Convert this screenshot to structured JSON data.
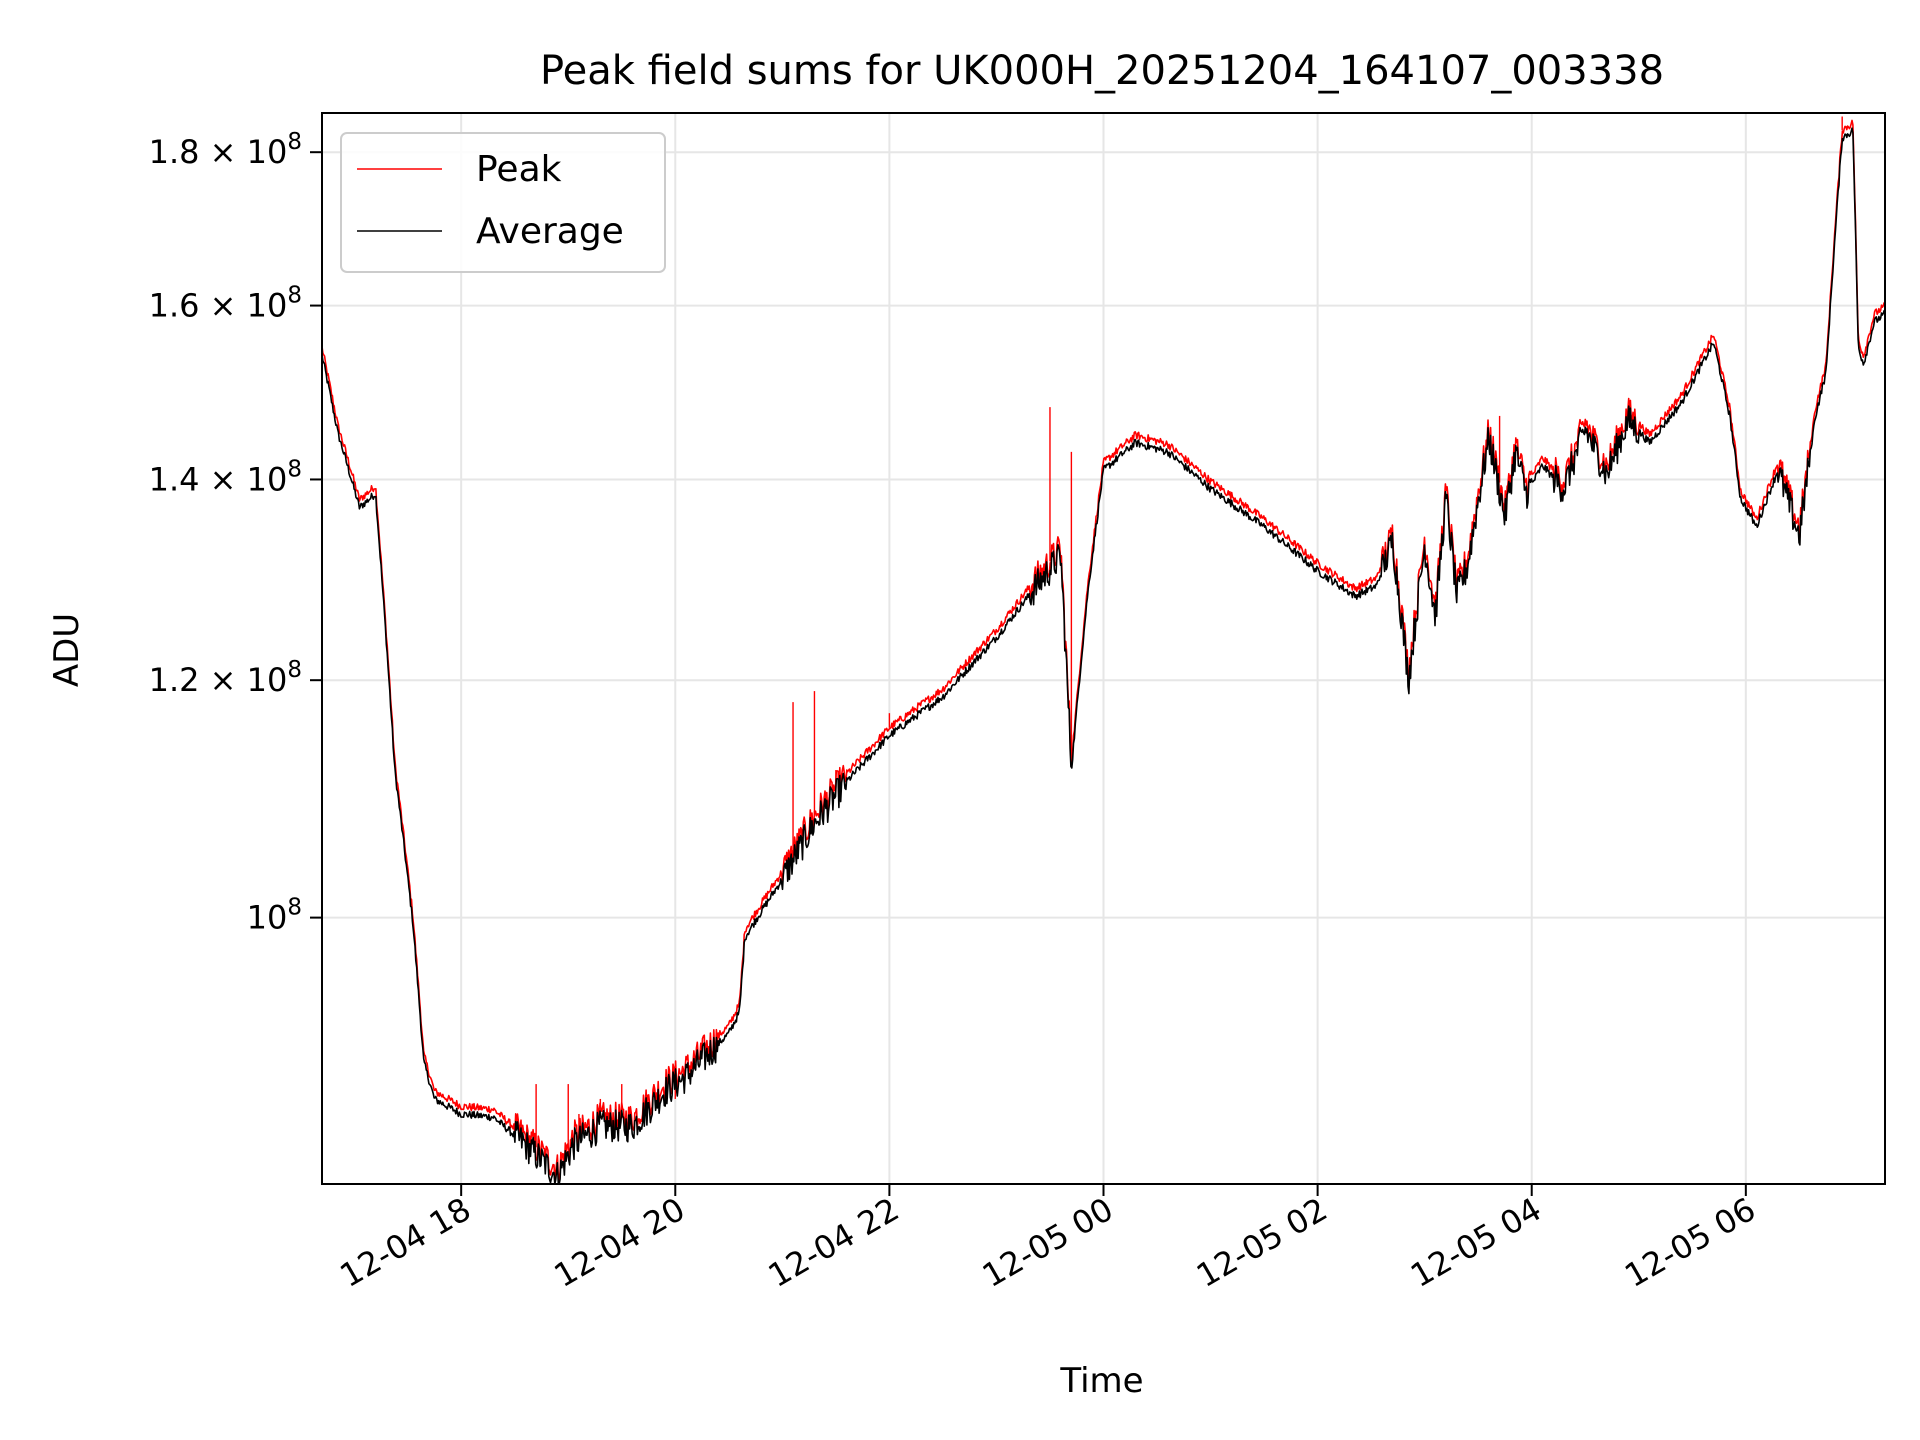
{
  "chart_data": {
    "type": "line",
    "title": "Peak field sums for UK000H_20251204_164107_003338",
    "xlabel": "Time",
    "ylabel": "ADU",
    "yscale": "log",
    "xlim_hours": [
      16.7,
      31.3
    ],
    "ylim": [
      81500000,
      185500000
    ],
    "grid": true,
    "legend_position": "upper-left",
    "x_ticks": [
      {
        "hour": 18,
        "label": "12-04 18"
      },
      {
        "hour": 20,
        "label": "12-04 20"
      },
      {
        "hour": 22,
        "label": "12-04 22"
      },
      {
        "hour": 24,
        "label": "12-05 00"
      },
      {
        "hour": 26,
        "label": "12-05 02"
      },
      {
        "hour": 28,
        "label": "12-05 04"
      },
      {
        "hour": 30,
        "label": "12-05 06"
      }
    ],
    "y_ticks": [
      {
        "value": 100000000,
        "mant": "",
        "times": "",
        "base": "10",
        "exp": "8"
      },
      {
        "value": 120000000,
        "mant": "1.2",
        "times": "×",
        "base": "10",
        "exp": "8"
      },
      {
        "value": 140000000,
        "mant": "1.4",
        "times": "×",
        "base": "10",
        "exp": "8"
      },
      {
        "value": 160000000,
        "mant": "1.6",
        "times": "×",
        "base": "10",
        "exp": "8"
      },
      {
        "value": 180000000,
        "mant": "1.8",
        "times": "×",
        "base": "10",
        "exp": "8"
      }
    ],
    "series": [
      {
        "name": "Peak",
        "color": "#ff0000",
        "offset_factor": 1.006,
        "spikes": [
          [
            18.7,
            88
          ],
          [
            19.0,
            88
          ],
          [
            19.1,
            86
          ],
          [
            19.3,
            87
          ],
          [
            19.5,
            88
          ],
          [
            19.8,
            88
          ],
          [
            20.0,
            87
          ],
          [
            21.1,
            118
          ],
          [
            21.3,
            119
          ],
          [
            21.5,
            112
          ],
          [
            22.0,
            117
          ],
          [
            23.5,
            148
          ],
          [
            23.7,
            143
          ],
          [
            27.7,
            147
          ],
          [
            30.9,
            185
          ]
        ]
      },
      {
        "name": "Average",
        "color": "#000000",
        "offset_factor": 1.0,
        "spikes": []
      }
    ],
    "base_curve_hours": [
      16.7,
      16.85,
      17.05,
      17.2,
      17.38,
      17.55,
      17.65,
      17.75,
      18.0,
      18.3,
      18.6,
      18.9,
      19.05,
      19.3,
      19.6,
      19.9,
      20.1,
      20.5,
      20.6,
      20.65,
      21.0,
      21.3,
      21.6,
      22.0,
      22.5,
      23.0,
      23.3,
      23.6,
      23.7,
      23.85,
      24.0,
      24.3,
      24.6,
      25.0,
      25.5,
      26.0,
      26.35,
      26.55,
      26.7,
      26.85,
      27.0,
      27.1,
      27.2,
      27.3,
      27.4,
      27.6,
      27.75,
      27.85,
      27.95,
      28.1,
      28.3,
      28.5,
      28.7,
      28.9,
      29.1,
      29.4,
      29.7,
      29.85,
      29.95,
      30.1,
      30.3,
      30.5,
      30.65,
      30.75,
      30.9,
      31.0,
      31.05,
      31.1,
      31.2,
      31.3
    ],
    "base_curve_values_millions": [
      154,
      145,
      137,
      138.5,
      112,
      99.5,
      89.5,
      87,
      86,
      85.8,
      84,
      82,
      84,
      85.2,
      85.2,
      87.5,
      88.5,
      91.5,
      93,
      98.5,
      103,
      107.5,
      111,
      115,
      118.5,
      124,
      128,
      132,
      112,
      128,
      141,
      144,
      143,
      139,
      135,
      130.5,
      128,
      129,
      133.5,
      120,
      133,
      126,
      138,
      128,
      131,
      144.5,
      136,
      143,
      138.5,
      141.5,
      139,
      145.5,
      140.5,
      146.5,
      144,
      148.5,
      155.5,
      147,
      138,
      135,
      141,
      134,
      147,
      152,
      182,
      183,
      155,
      153,
      158,
      159
    ]
  },
  "legend": {
    "peak_label": "Peak",
    "average_label": "Average"
  }
}
